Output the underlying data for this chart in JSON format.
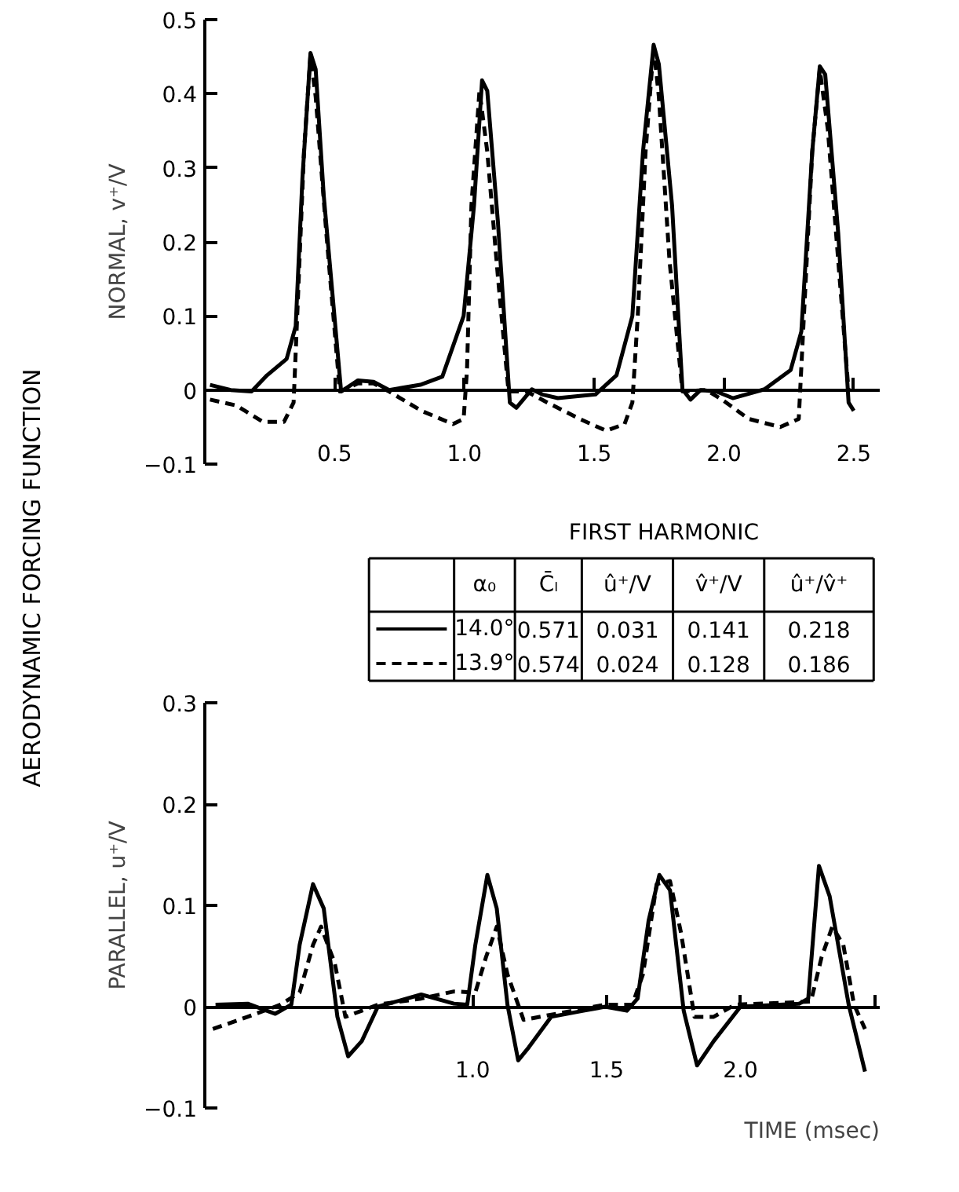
{
  "chart_data": [
    {
      "type": "line",
      "ylabel": "NORMAL, v⁺/V",
      "annotations": [
        "AERODYNAMIC FORCING FUNCTION"
      ],
      "xlim": [
        0,
        2.6
      ],
      "ylim": [
        -0.1,
        0.5
      ],
      "xticks": [
        0.5,
        {
          "value": 1,
          "label": "1.0"
        },
        1.5,
        {
          "value": 2,
          "label": "2.0"
        },
        2.5
      ],
      "yticks": [
        {
          "value": -0.1,
          "label": "−0.1"
        },
        0,
        0.1,
        0.2,
        0.3,
        0.4,
        0.5
      ],
      "grid": false,
      "series": [
        {
          "color": "#000000",
          "line_style": "solid",
          "x": [
            0.02,
            0.1,
            0.18,
            0.24,
            0.315,
            0.35,
            0.376,
            0.407,
            0.427,
            0.458,
            0.525,
            0.59,
            0.65,
            0.71,
            0.83,
            0.915,
            0.997,
            1.037,
            1.068,
            1.088,
            1.129,
            1.175,
            1.2,
            1.26,
            1.3,
            1.36,
            1.505,
            1.586,
            1.647,
            1.688,
            1.729,
            1.749,
            1.8,
            1.84,
            1.871,
            1.91,
            1.97,
            2.034,
            2.156,
            2.257,
            2.298,
            2.34,
            2.369,
            2.39,
            2.44,
            2.48,
            2.5
          ],
          "values": [
            0.007,
            0,
            -0.002,
            0.02,
            0.042,
            0.086,
            0.286,
            0.455,
            0.433,
            0.263,
            -0.002,
            0.013,
            0.011,
            0,
            0.007,
            0.018,
            0.1,
            0.249,
            0.418,
            0.404,
            0.227,
            -0.017,
            -0.024,
            0.001,
            -0.006,
            -0.011,
            -0.006,
            0.02,
            0.1,
            0.322,
            0.466,
            0.44,
            0.249,
            0.001,
            -0.013,
            0,
            -0.002,
            -0.011,
            0.001,
            0.027,
            0.079,
            0.322,
            0.437,
            0.426,
            0.212,
            -0.017,
            -0.028
          ]
        },
        {
          "color": "#000000",
          "line_style": "dashed",
          "x": [
            0.02,
            0.122,
            0.224,
            0.305,
            0.342,
            0.356,
            0.382,
            0.407,
            0.427,
            0.468,
            0.52,
            0.59,
            0.65,
            0.71,
            0.834,
            0.956,
            0.997,
            1.01,
            1.027,
            1.058,
            1.088,
            1.129,
            1.17,
            1.24,
            1.32,
            1.444,
            1.546,
            1.617,
            1.647,
            1.668,
            1.698,
            1.729,
            1.749,
            1.79,
            1.84,
            1.932,
            1.993,
            2.095,
            2.217,
            2.288,
            2.308,
            2.34,
            2.369,
            2.4,
            2.45,
            2.48
          ],
          "values": [
            -0.013,
            -0.021,
            -0.043,
            -0.043,
            -0.017,
            0.101,
            0.322,
            0.452,
            0.396,
            0.212,
            -0.002,
            0.009,
            0.009,
            -0.002,
            -0.028,
            -0.046,
            -0.039,
            0.027,
            0.249,
            0.404,
            0.322,
            0.153,
            -0.002,
            -0.002,
            -0.017,
            -0.039,
            -0.055,
            -0.046,
            -0.017,
            0.101,
            0.322,
            0.463,
            0.396,
            0.175,
            -0.002,
            0,
            -0.013,
            -0.039,
            -0.05,
            -0.039,
            0.101,
            0.322,
            0.433,
            0.352,
            0.131,
            -0.002
          ]
        }
      ]
    },
    {
      "type": "other",
      "title": "FIRST HARMONIC",
      "annotations": [
        "α₀",
        "C̄ₗ",
        "û⁺/V",
        "v̂⁺/V",
        "û⁺/v̂⁺",
        "14.0°",
        "0.571",
        "0.031",
        "0.141",
        "0.218",
        "13.9°",
        "0.574",
        "0.024",
        "0.128",
        "0.186"
      ]
    },
    {
      "type": "line",
      "ylabel": "PARALLEL, u⁺/V",
      "xlabel": "TIME (msec)",
      "xlim": [
        0,
        2.52
      ],
      "ylim": [
        -0.1,
        0.3
      ],
      "xticks": [
        {
          "value": 1,
          "label": "1.0"
        },
        1.5,
        {
          "value": 2,
          "label": "2.0"
        },
        {
          "value": 2.5,
          "label": null
        }
      ],
      "yticks": [
        {
          "value": -0.1,
          "label": "−0.1"
        },
        0,
        0.1,
        0.2,
        0.3
      ],
      "grid": false,
      "series": [
        {
          "color": "#000000",
          "line_style": "solid",
          "x": [
            0.04,
            0.16,
            0.263,
            0.323,
            0.354,
            0.404,
            0.444,
            0.495,
            0.535,
            0.586,
            0.646,
            0.808,
            0.93,
            0.98,
            1.01,
            1.055,
            1.09,
            1.13,
            1.17,
            1.21,
            1.293,
            1.414,
            1.495,
            1.576,
            1.616,
            1.657,
            1.697,
            1.737,
            1.788,
            1.838,
            1.9,
            2.0,
            2.22,
            2.253,
            2.293,
            2.333,
            2.404,
            2.465
          ],
          "values": [
            0.002,
            0.003,
            -0.007,
            0.002,
            0.061,
            0.121,
            0.097,
            -0.01,
            -0.049,
            -0.034,
            0,
            0.012,
            0.003,
            0.002,
            0.061,
            0.13,
            0.097,
            0.002,
            -0.053,
            -0.04,
            -0.01,
            -0.004,
            0,
            -0.004,
            0.008,
            0.085,
            0.13,
            0.115,
            -0.004,
            -0.058,
            -0.034,
            0,
            0.003,
            0.008,
            0.139,
            0.109,
            0.002,
            -0.064
          ]
        },
        {
          "color": "#000000",
          "line_style": "dashed",
          "x": [
            0.03,
            0.16,
            0.283,
            0.354,
            0.404,
            0.434,
            0.485,
            0.525,
            0.586,
            0.646,
            0.808,
            0.93,
            1.01,
            1.05,
            1.09,
            1.13,
            1.19,
            1.313,
            1.495,
            1.596,
            1.636,
            1.687,
            1.737,
            1.778,
            1.828,
            1.9,
            1.98,
            2.263,
            2.303,
            2.343,
            2.384,
            2.424,
            2.465
          ],
          "values": [
            -0.022,
            -0.01,
            0.002,
            0.014,
            0.061,
            0.079,
            0.043,
            -0.01,
            -0.004,
            0.002,
            0.008,
            0.015,
            0.014,
            0.049,
            0.079,
            0.032,
            -0.013,
            -0.007,
            0.002,
            0.002,
            0.032,
            0.121,
            0.124,
            0.073,
            -0.01,
            -0.01,
            0.002,
            0.005,
            0.049,
            0.079,
            0.061,
            0.002,
            -0.022
          ]
        }
      ]
    }
  ]
}
